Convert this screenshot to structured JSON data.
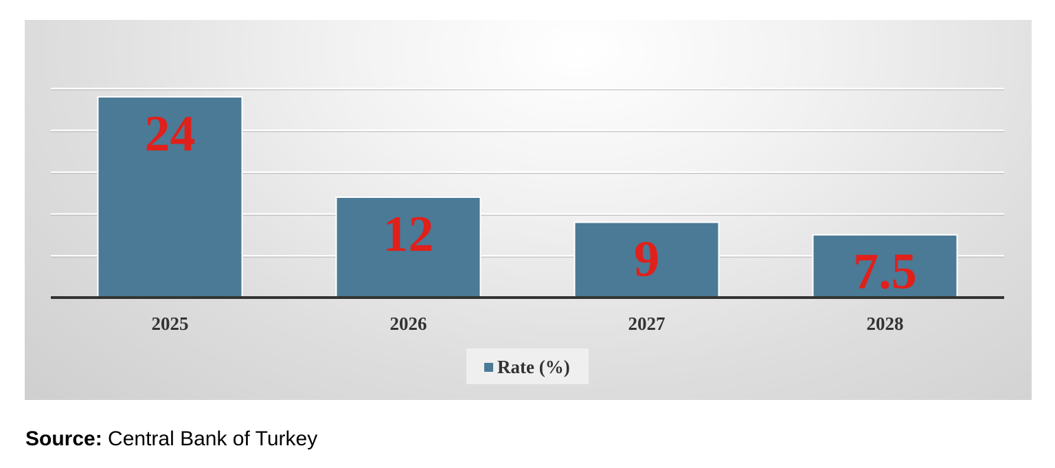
{
  "chart_data": {
    "type": "bar",
    "categories": [
      "2025",
      "2026",
      "2027",
      "2028"
    ],
    "series": [
      {
        "name": "Rate (%)",
        "values": [
          24,
          12,
          9,
          7.5
        ]
      }
    ],
    "data_labels": [
      "24",
      "12",
      "9",
      "7.5"
    ],
    "ylim": [
      0,
      25
    ],
    "grid": true,
    "legend": "bottom",
    "colors": {
      "bar": "#4a7a96",
      "bar_edge": "#ffffff",
      "data_label": "#e0201b",
      "axis": "#333333",
      "grid": "#ffffff"
    }
  },
  "source": {
    "label": "Source:",
    "text": "Central Bank of Turkey"
  }
}
